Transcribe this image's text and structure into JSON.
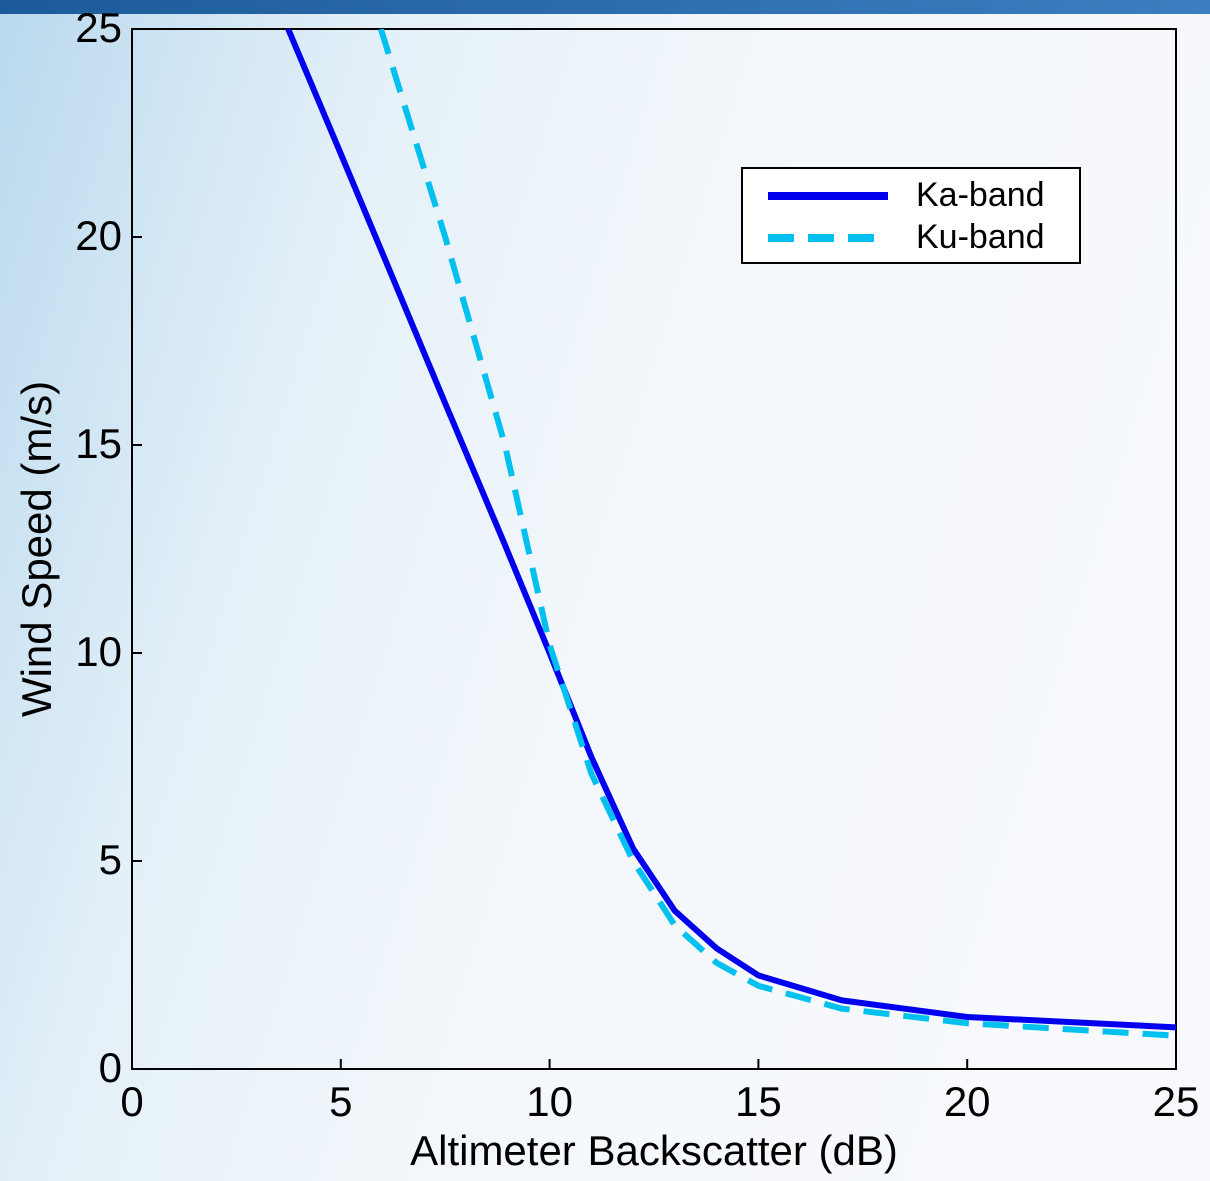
{
  "chart_data": {
    "type": "line",
    "x_label": "Altimeter Backscatter (dB)",
    "y_label": "Wind Speed (m/s)",
    "x": [
      3.74,
      5,
      5.96,
      7.5,
      8.93,
      10,
      11,
      12,
      13,
      14,
      15,
      17,
      20,
      25
    ],
    "series": [
      {
        "name": "Ka-band",
        "color": "#0000ee",
        "style": "solid",
        "values": [
          25,
          22,
          19.7,
          16,
          12.6,
          10,
          7.5,
          5.3,
          3.8,
          2.9,
          2.25,
          1.65,
          1.25,
          1.0
        ]
      },
      {
        "name": "Ku-band",
        "color": "#00c0f0",
        "style": "dashed",
        "values": [
          null,
          null,
          25,
          20,
          15,
          10.2,
          7.1,
          5.0,
          3.45,
          2.55,
          2.0,
          1.45,
          1.1,
          0.8
        ]
      }
    ],
    "xlim": [
      0,
      25
    ],
    "ylim": [
      0,
      25
    ],
    "xticks": [
      0,
      5,
      10,
      15,
      20,
      25
    ],
    "yticks": [
      0,
      5,
      10,
      15,
      20,
      25
    ],
    "legend": "upper right"
  }
}
